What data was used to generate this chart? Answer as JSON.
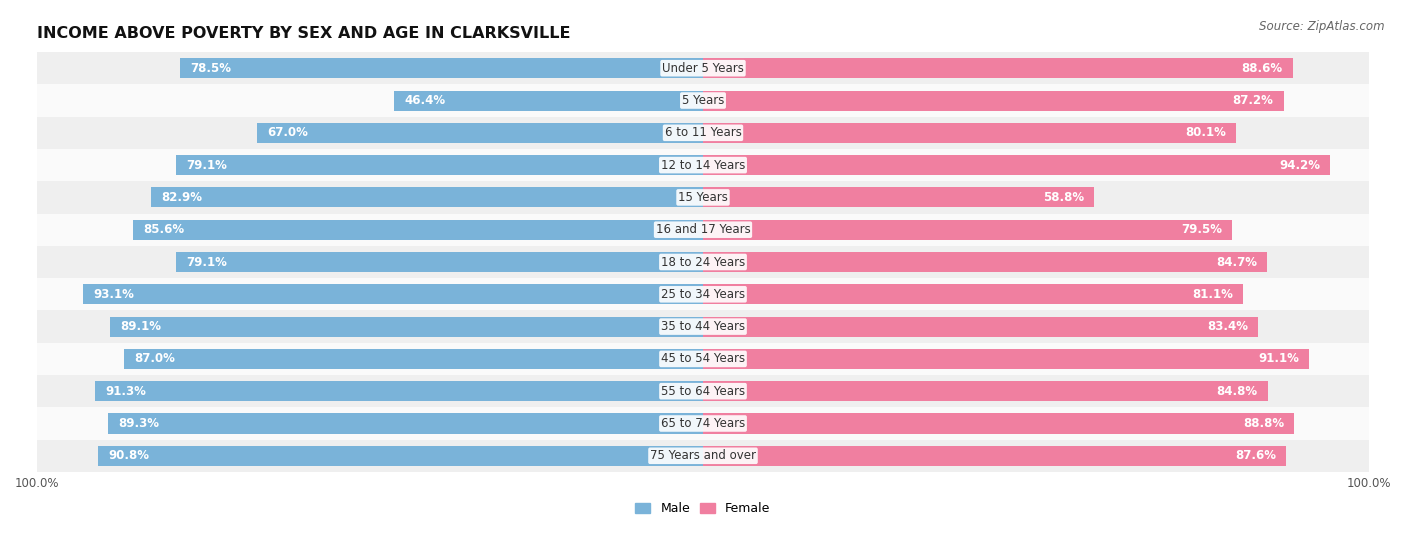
{
  "title": "INCOME ABOVE POVERTY BY SEX AND AGE IN CLARKSVILLE",
  "source": "Source: ZipAtlas.com",
  "categories": [
    "Under 5 Years",
    "5 Years",
    "6 to 11 Years",
    "12 to 14 Years",
    "15 Years",
    "16 and 17 Years",
    "18 to 24 Years",
    "25 to 34 Years",
    "35 to 44 Years",
    "45 to 54 Years",
    "55 to 64 Years",
    "65 to 74 Years",
    "75 Years and over"
  ],
  "male": [
    78.5,
    46.4,
    67.0,
    79.1,
    82.9,
    85.6,
    79.1,
    93.1,
    89.1,
    87.0,
    91.3,
    89.3,
    90.8
  ],
  "female": [
    88.6,
    87.2,
    80.1,
    94.2,
    58.8,
    79.5,
    84.7,
    81.1,
    83.4,
    91.1,
    84.8,
    88.8,
    87.6
  ],
  "male_color": "#7ab3d9",
  "female_color": "#f07fa0",
  "row_bg_light": "#efefef",
  "row_bg_white": "#fafafa",
  "bar_height": 0.62,
  "title_fontsize": 11.5,
  "label_fontsize": 8.5,
  "tick_fontsize": 8.5,
  "source_fontsize": 8.5
}
